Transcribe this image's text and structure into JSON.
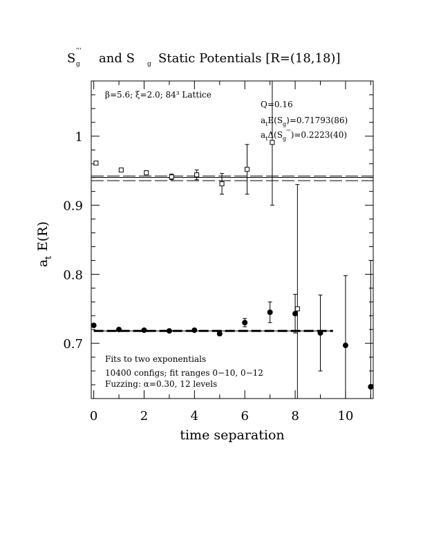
{
  "chart_data": {
    "type": "scatter",
    "title": {
      "p1": "S",
      "p1_sub": "g",
      "p1_sup": "'''",
      "p2": "and S",
      "p2_sub": "g",
      "p3": "Static Potentials [R=(18,18)]"
    },
    "xlabel": "time separation",
    "ylabel": {
      "main": "a",
      "sub": "t",
      "rest": "E(R)"
    },
    "xlim": [
      -0.1,
      11.1
    ],
    "ylim": [
      0.62,
      1.08
    ],
    "xticks": [
      "0",
      "2",
      "4",
      "6",
      "8",
      "10"
    ],
    "yticks": [
      "0.7",
      "0.8",
      "0.9",
      "1"
    ],
    "lattice_label": "β=5.6;  ξ=2.0;  84³ Lattice",
    "fit_info": {
      "q": "Q=0.16",
      "e_prefix": "a",
      "e_sub": "t",
      "e_mid": "E(S",
      "e_sub2": "g",
      "e_value": ")=0.71793(86)",
      "d_prefix": "a",
      "d_sub": "t",
      "d_mid": "Δ(S",
      "d_sub2": "g",
      "d_sup": "'''",
      "d_value": ")=0.2223(40)"
    },
    "notes": [
      "Fits to two exponentials",
      "10400 configs; fit ranges 0−10, 0−12",
      "Fuzzing: α=0.30, 12 levels"
    ],
    "series": [
      {
        "name": "S_g",
        "marker": "filled-circle",
        "points": [
          {
            "x": 0,
            "y": 0.726,
            "err": 0.002
          },
          {
            "x": 1,
            "y": 0.72,
            "err": 0.002
          },
          {
            "x": 2,
            "y": 0.719,
            "err": 0.002
          },
          {
            "x": 3,
            "y": 0.718,
            "err": 0.002
          },
          {
            "x": 4,
            "y": 0.719,
            "err": 0.002
          },
          {
            "x": 5,
            "y": 0.714,
            "err": 0.003
          },
          {
            "x": 6,
            "y": 0.73,
            "err": 0.006
          },
          {
            "x": 7,
            "y": 0.745,
            "err": 0.015
          },
          {
            "x": 8,
            "y": 0.743,
            "err": 0.028
          },
          {
            "x": 9,
            "y": 0.715,
            "err": 0.055
          },
          {
            "x": 10,
            "y": 0.697,
            "err": 0.101
          },
          {
            "x": 11,
            "y": 0.637,
            "err": 0.183
          }
        ]
      },
      {
        "name": "S_g'''",
        "marker": "open-square",
        "points": [
          {
            "x": 0,
            "y": 0.961,
            "err": 0.002
          },
          {
            "x": 1,
            "y": 0.951,
            "err": 0.002
          },
          {
            "x": 2,
            "y": 0.947,
            "err": 0.003
          },
          {
            "x": 3,
            "y": 0.941,
            "err": 0.004
          },
          {
            "x": 4,
            "y": 0.944,
            "err": 0.007
          },
          {
            "x": 5,
            "y": 0.931,
            "err": 0.015
          },
          {
            "x": 6,
            "y": 0.952,
            "err": 0.036
          },
          {
            "x": 7,
            "y": 0.991,
            "err": 0.091
          },
          {
            "x": 8,
            "y": 0.75,
            "err": 0.18
          }
        ]
      }
    ],
    "fits": {
      "excited_band": [
        0.9356,
        0.9423
      ],
      "excited_center": 0.9402,
      "ground_band": [
        0.7171,
        0.7188
      ],
      "ground_center": 0.71793,
      "ground_range": [
        0,
        9.5
      ]
    }
  }
}
